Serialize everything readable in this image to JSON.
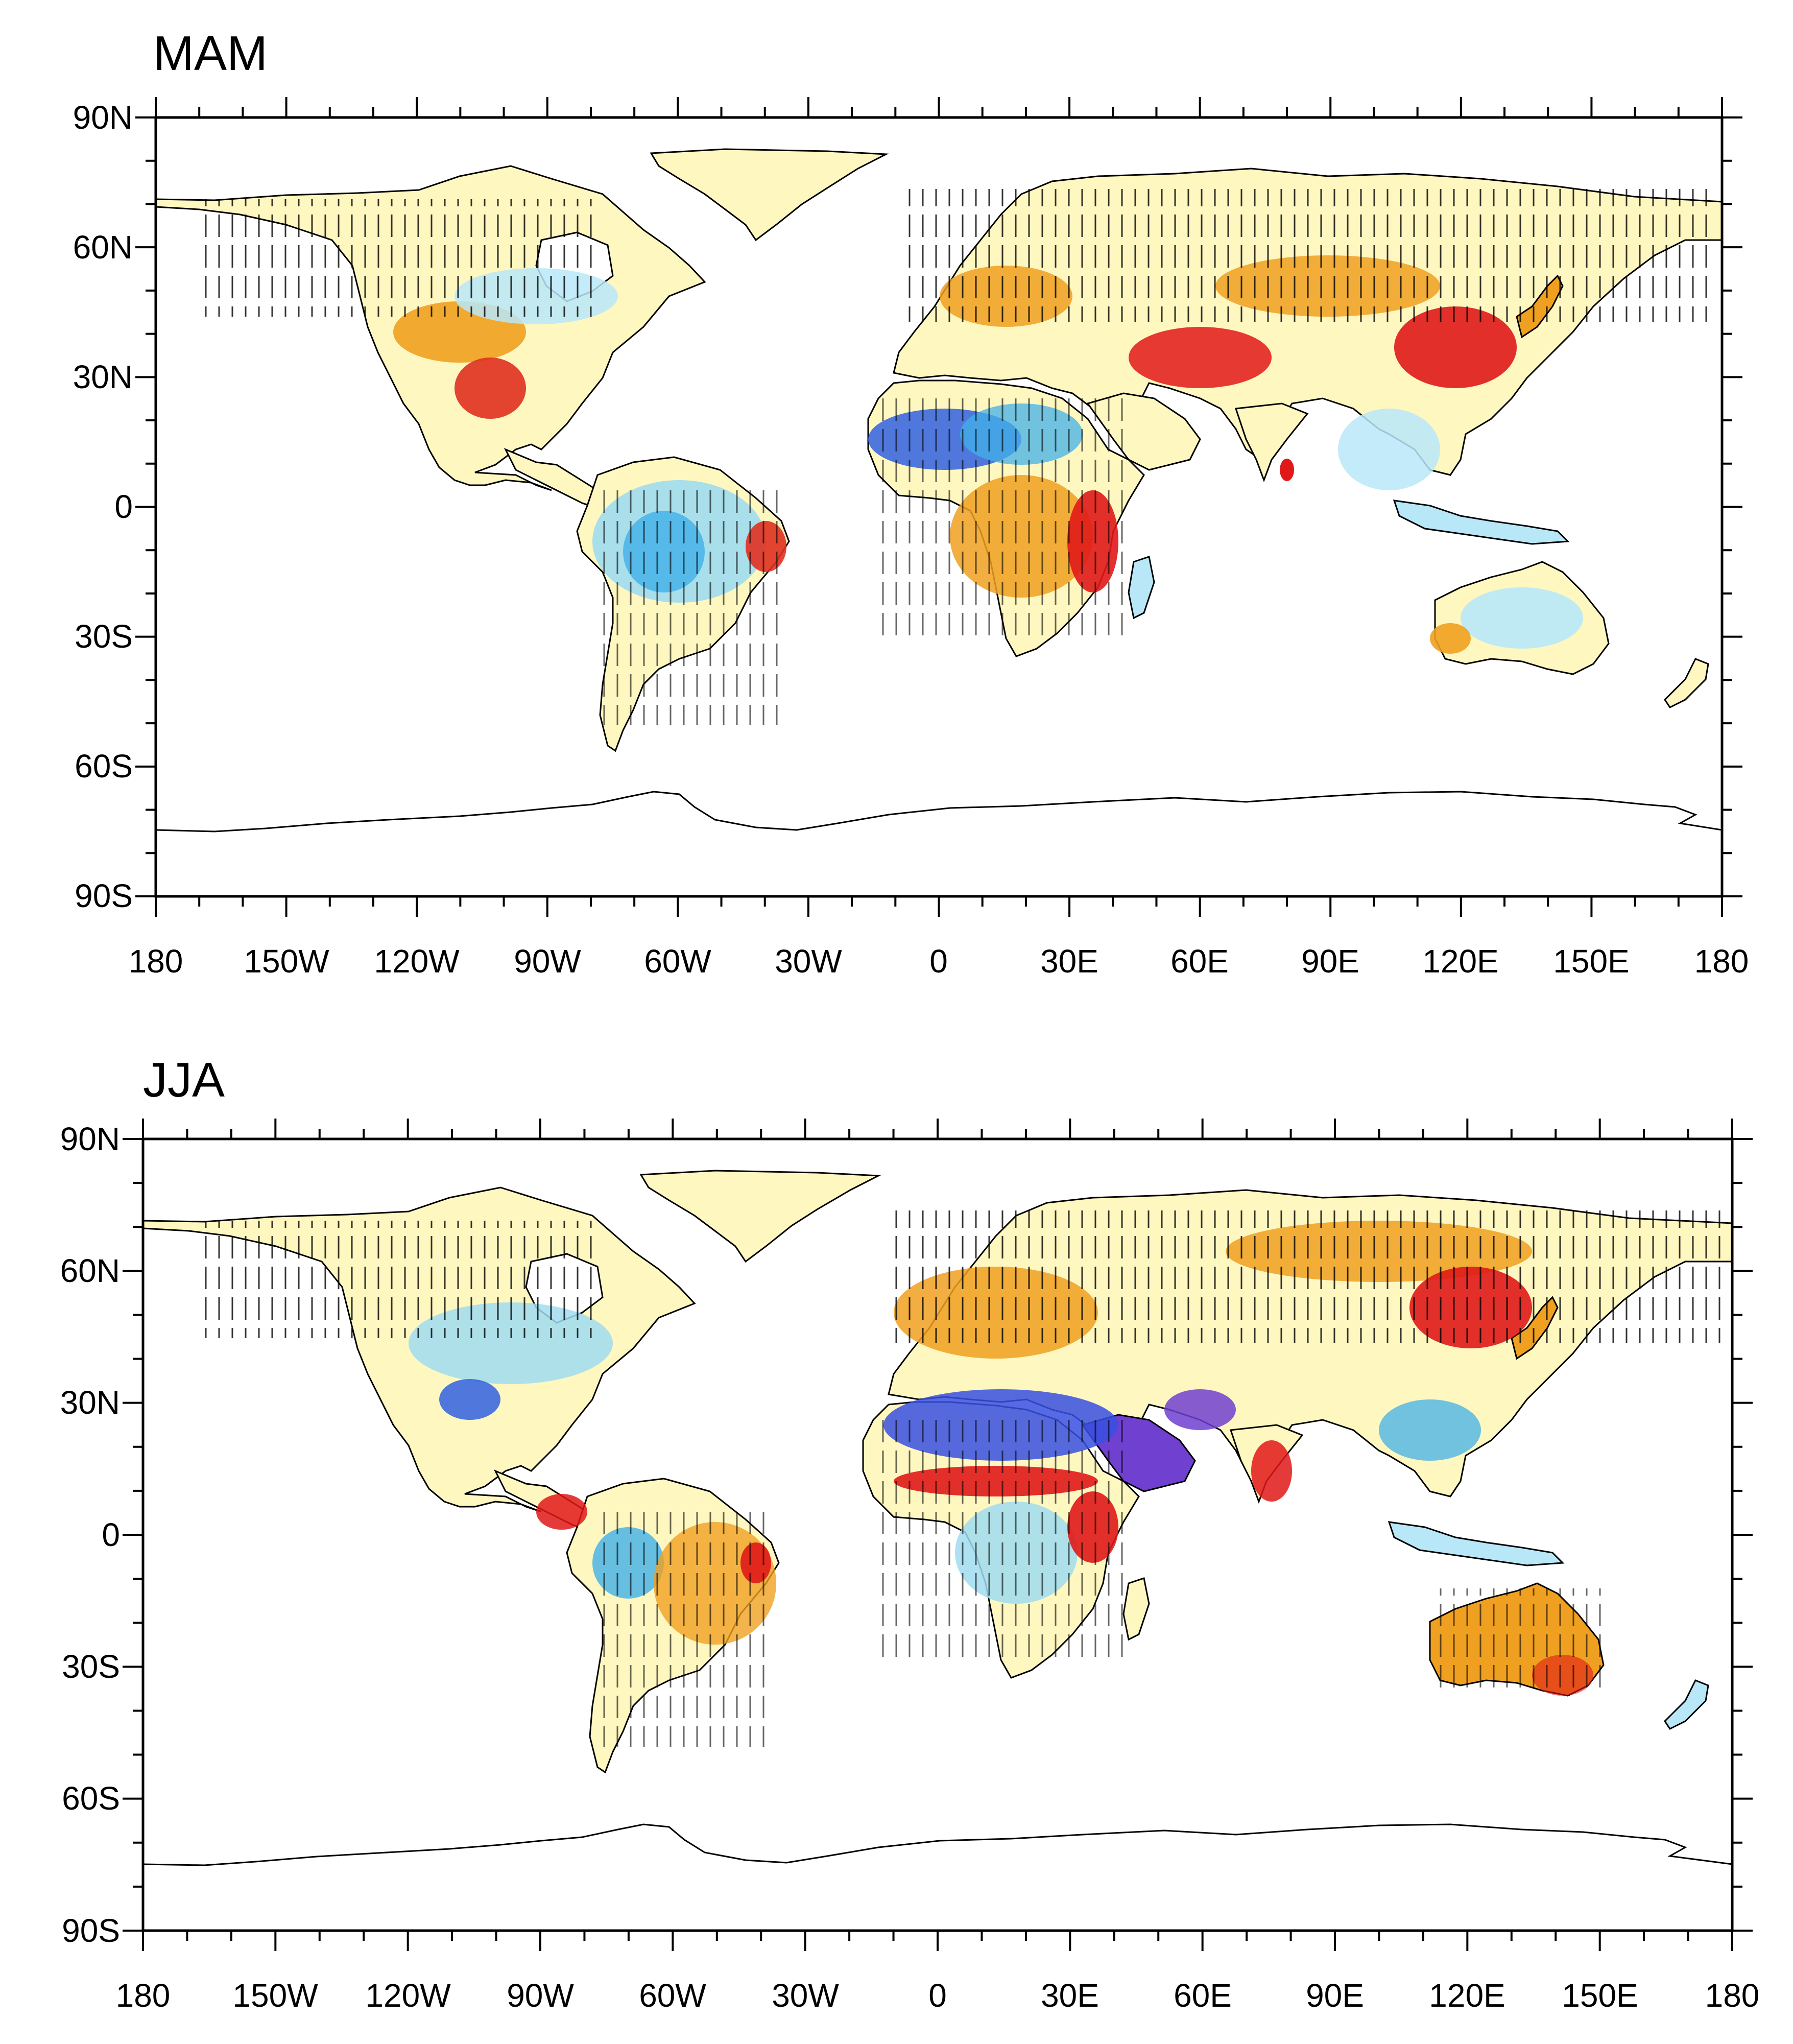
{
  "panels": [
    {
      "title": "MAM",
      "lat_labels": [
        "90N",
        "60N",
        "30N",
        "0",
        "30S",
        "60S",
        "90S"
      ],
      "lon_labels": [
        "180",
        "150W",
        "120W",
        "90W",
        "60W",
        "30W",
        "0",
        "30E",
        "60E",
        "90E",
        "120E",
        "150E",
        "180"
      ],
      "regions": [
        {
          "name": "north-america-base",
          "color": "#fff7c0"
        },
        {
          "name": "western-us-dry",
          "color": "#f0a020"
        },
        {
          "name": "mexico-red",
          "color": "#e03020"
        },
        {
          "name": "amazon-wet",
          "color": "#a0dcf0"
        },
        {
          "name": "sahel-blue",
          "color": "#3060e0"
        },
        {
          "name": "east-africa-red",
          "color": "#e01818"
        },
        {
          "name": "china-red",
          "color": "#e01818"
        },
        {
          "name": "australia-wet",
          "color": "#b8e8f8"
        }
      ]
    },
    {
      "title": "JJA",
      "lat_labels": [
        "90N",
        "60N",
        "30N",
        "0",
        "30S",
        "60S",
        "90S"
      ],
      "lon_labels": [
        "180",
        "150W",
        "120W",
        "90W",
        "60W",
        "30W",
        "0",
        "30E",
        "60E",
        "90E",
        "120E",
        "150E",
        "180"
      ],
      "regions": [
        {
          "name": "north-america-base",
          "color": "#fff7c0"
        },
        {
          "name": "us-wet",
          "color": "#a0dcf0"
        },
        {
          "name": "sahara-blue",
          "color": "#3850e0"
        },
        {
          "name": "sahel-red",
          "color": "#e01818"
        },
        {
          "name": "arabia-purple",
          "color": "#7040d0"
        },
        {
          "name": "north-china-red",
          "color": "#e01818"
        },
        {
          "name": "australia-dry",
          "color": "#f0a020"
        }
      ]
    }
  ],
  "colors": {
    "light_yellow": "#fff7c0",
    "orange": "#f0a020",
    "red": "#e01818",
    "light_blue": "#b8e8f8",
    "sky_blue": "#40b0e8",
    "blue": "#3060e0",
    "purple": "#7040d0",
    "coast": "#000000"
  }
}
